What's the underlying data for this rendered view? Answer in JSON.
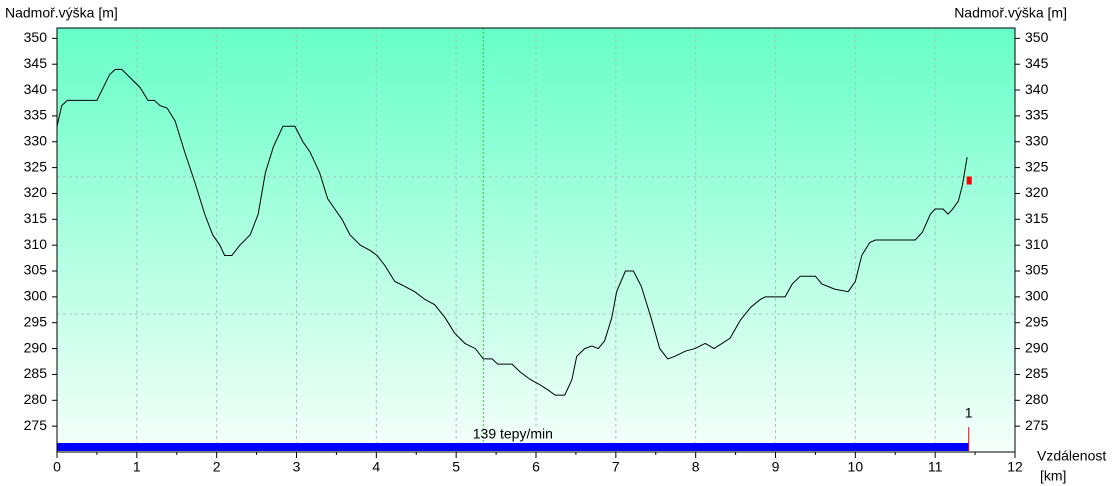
{
  "chart_data": {
    "type": "line",
    "y_label": "Nadmoř.výška [m]",
    "x_label": "Vzdálenost",
    "x_unit": "[km]",
    "xlim": [
      0,
      12
    ],
    "xticks": [
      0,
      1,
      2,
      3,
      4,
      5,
      6,
      7,
      8,
      9,
      10,
      11,
      12
    ],
    "ylim": [
      270,
      352
    ],
    "yticks": [
      275,
      280,
      285,
      290,
      295,
      300,
      305,
      310,
      315,
      320,
      325,
      330,
      335,
      340,
      345,
      350
    ],
    "y_grid": [
      323.2,
      296.7
    ],
    "grid": true,
    "color": "#000000",
    "x": [
      0,
      0.06,
      0.13,
      0.5,
      0.58,
      0.66,
      0.73,
      0.81,
      0.91,
      1.04,
      1.14,
      1.22,
      1.29,
      1.38,
      1.48,
      1.6,
      1.73,
      1.85,
      1.95,
      2.04,
      2.1,
      2.19,
      2.29,
      2.42,
      2.52,
      2.61,
      2.71,
      2.83,
      2.98,
      3.08,
      3.17,
      3.29,
      3.39,
      3.48,
      3.57,
      3.67,
      3.8,
      3.92,
      4.01,
      4.11,
      4.23,
      4.36,
      4.48,
      4.61,
      4.73,
      4.86,
      4.98,
      5.11,
      5.24,
      5.34,
      5.45,
      5.52,
      5.7,
      5.8,
      5.93,
      6.05,
      6.15,
      6.24,
      6.36,
      6.45,
      6.51,
      6.61,
      6.7,
      6.78,
      6.86,
      6.95,
      7.01,
      7.12,
      7.22,
      7.32,
      7.44,
      7.55,
      7.65,
      7.74,
      7.87,
      7.99,
      8.12,
      8.23,
      8.33,
      8.43,
      8.56,
      8.69,
      8.81,
      8.87,
      9.12,
      9.21,
      9.31,
      9.5,
      9.58,
      9.74,
      9.91,
      10.0,
      10.08,
      10.18,
      10.25,
      10.75,
      10.84,
      10.94,
      11.0,
      11.1,
      11.16,
      11.22,
      11.29,
      11.34,
      11.4
    ],
    "values": [
      333,
      337,
      338,
      338,
      340.5,
      343,
      344,
      344,
      342.5,
      340.5,
      338,
      338,
      337,
      336.5,
      334,
      328,
      322,
      316,
      312,
      310,
      308,
      308,
      310,
      312,
      316,
      324,
      329,
      333,
      333,
      330,
      328,
      324,
      319,
      317,
      315,
      312,
      310,
      309,
      308,
      306,
      303,
      302,
      301,
      299.5,
      298.5,
      296,
      293,
      291,
      290,
      288,
      288,
      287,
      287,
      285.5,
      284,
      283,
      282,
      281,
      281,
      284,
      288.5,
      290,
      290.5,
      290,
      291.5,
      296,
      301,
      305,
      305,
      302,
      296,
      290,
      288,
      288.5,
      289.5,
      290,
      291,
      290,
      291,
      292,
      295.5,
      298,
      299.5,
      300,
      300,
      302.5,
      304,
      304,
      302.5,
      301.5,
      301,
      303,
      308,
      310.5,
      311,
      311,
      312.5,
      316,
      317,
      317,
      316,
      317,
      318.5,
      321.5,
      327
    ],
    "marker": {
      "x": 11.42,
      "y": 322.5
    },
    "hr_cursor_x": 5.34,
    "hr_segment": {
      "label": "139 tepy/min",
      "x_range": [
        0,
        11.42
      ]
    },
    "lap": {
      "label": "1",
      "x": 11.42
    }
  }
}
